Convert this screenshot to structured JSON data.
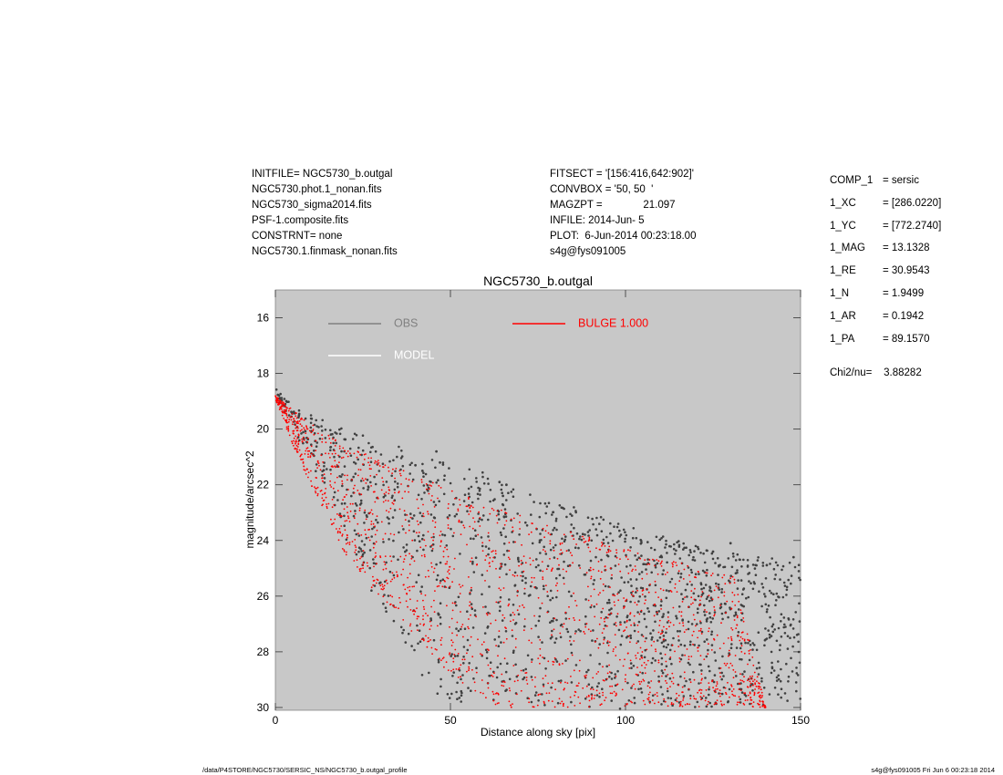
{
  "header_left": [
    "INITFILE= NGC5730_b.outgal",
    "NGC5730.phot.1_nonan.fits",
    "NGC5730_sigma2014.fits",
    "PSF-1.composite.fits",
    "CONSTRNT= none",
    "NGC5730.1.finmask_nonan.fits"
  ],
  "header_mid": [
    "FITSECT = '[156:416,642:902]'",
    "CONVBOX = '50, 50  '",
    "MAGZPT =              21.097",
    "INFILE: 2014-Jun- 5",
    "PLOT:  6-Jun-2014 00:23:18.00",
    "s4g@fys091005"
  ],
  "params": [
    {
      "label": "COMP_1",
      "value": "= sersic"
    },
    {
      "label": "1_XC",
      "value": "= [286.0220]"
    },
    {
      "label": "1_YC",
      "value": "= [772.2740]"
    },
    {
      "label": "1_MAG",
      "value": "= 13.1328"
    },
    {
      "label": "1_RE",
      "value": "= 30.9543"
    },
    {
      "label": "1_N",
      "value": "= 1.9499"
    },
    {
      "label": "1_AR",
      "value": "= 0.1942"
    },
    {
      "label": "1_PA",
      "value": "= 89.1570"
    }
  ],
  "chi": {
    "label": "Chi2/nu=",
    "value": "3.88282"
  },
  "footer": {
    "left": "/data/P4STORE/NGC5730/SERSIC_NS/NGC5730_b.outgal_profile",
    "right": "s4g@fys091005  Fri Jun  6 00:23:18 2014"
  },
  "chart_data": {
    "type": "scatter",
    "title": "NGC5730_b.outgal",
    "xlabel": "Distance along sky [pix]",
    "ylabel": "magnitude/arcsec^2",
    "xlim": [
      0,
      150
    ],
    "ylim": [
      15,
      30
    ],
    "y_inverted": true,
    "xticks": [
      "0",
      "50",
      "100",
      "150"
    ],
    "yticks": [
      "16",
      "18",
      "20",
      "22",
      "24",
      "26",
      "28",
      "30"
    ],
    "legend": [
      {
        "name": "OBS",
        "color": "#808080"
      },
      {
        "name": "MODEL",
        "color": "#ffffff"
      },
      {
        "name": "BULGE  1.000",
        "color": "#ff0000"
      }
    ],
    "background_color": "#c8c8c8",
    "series": [
      {
        "name": "OBS",
        "color": "#404040",
        "upper_envelope": [
          [
            0,
            18.7
          ],
          [
            5,
            19.2
          ],
          [
            10,
            19.6
          ],
          [
            20,
            20.1
          ],
          [
            30,
            20.6
          ],
          [
            50,
            21.3
          ],
          [
            70,
            22.1
          ],
          [
            100,
            23.6
          ],
          [
            130,
            24.6
          ],
          [
            150,
            24.8
          ]
        ],
        "lower_envelope": [
          [
            0,
            18.9
          ],
          [
            10,
            21.0
          ],
          [
            20,
            24.0
          ],
          [
            30,
            26.5
          ],
          [
            40,
            28.5
          ],
          [
            50,
            30.0
          ],
          [
            150,
            30.0
          ]
        ]
      },
      {
        "name": "BULGE  1.000",
        "color": "#ff0000",
        "upper_envelope": [
          [
            0,
            18.8
          ],
          [
            10,
            19.8
          ],
          [
            20,
            20.6
          ],
          [
            30,
            21.1
          ],
          [
            50,
            22.2
          ],
          [
            75,
            23.3
          ],
          [
            100,
            24.3
          ],
          [
            131,
            25.3
          ]
        ],
        "lower_envelope": [
          [
            0,
            18.9
          ],
          [
            5,
            20.6
          ],
          [
            10,
            22.0
          ],
          [
            15,
            23.3
          ],
          [
            20,
            24.5
          ],
          [
            30,
            26.1
          ],
          [
            40,
            27.5
          ],
          [
            50,
            28.8
          ],
          [
            60,
            29.8
          ],
          [
            63,
            30.0
          ]
        ],
        "right_edge": [
          [
            131,
            25.3
          ],
          [
            140,
            30.0
          ]
        ]
      }
    ]
  }
}
